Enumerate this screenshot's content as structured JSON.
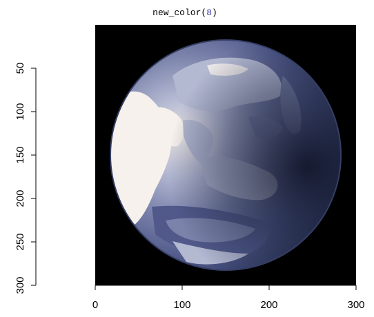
{
  "chart_data": {
    "type": "heatmap",
    "title_function": "new_color",
    "title_open_paren": "(",
    "title_argument": "8",
    "title_close_paren": ")",
    "xlabel": "",
    "ylabel": "",
    "xlim": [
      0,
      300
    ],
    "ylim": [
      300,
      0
    ],
    "x_ticks": [
      0,
      100,
      200,
      300
    ],
    "x_tick_labels": [
      "0",
      "100",
      "200",
      "300"
    ],
    "y_ticks": [
      50,
      100,
      150,
      200,
      250,
      300
    ],
    "y_tick_labels": [
      "50",
      "100",
      "150",
      "200",
      "250",
      "300"
    ],
    "n_colors": 8,
    "grid": false,
    "legend": "none",
    "content": "earth-globe-image",
    "palette": [
      "#000000",
      "#0b0f1f",
      "#1e2540",
      "#353f66",
      "#50598a",
      "#7b83ab",
      "#b4b9d2",
      "#f6f1ec"
    ]
  }
}
